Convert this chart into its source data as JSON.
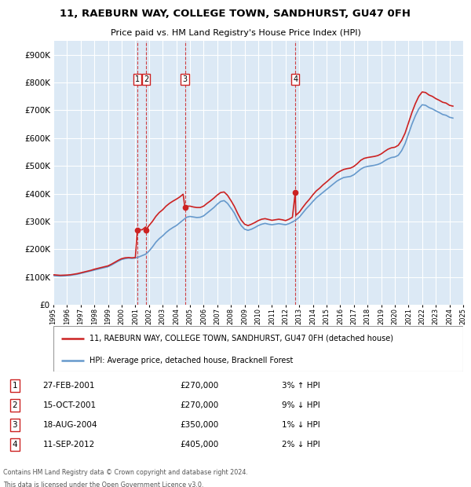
{
  "title1": "11, RAEBURN WAY, COLLEGE TOWN, SANDHURST, GU47 0FH",
  "title2": "Price paid vs. HM Land Registry's House Price Index (HPI)",
  "ylim": [
    0,
    950000
  ],
  "yticks": [
    0,
    100000,
    200000,
    300000,
    400000,
    500000,
    600000,
    700000,
    800000,
    900000
  ],
  "ytick_labels": [
    "£0",
    "£100K",
    "£200K",
    "£300K",
    "£400K",
    "£500K",
    "£600K",
    "£700K",
    "£800K",
    "£900K"
  ],
  "bg_color": "#dce9f5",
  "grid_color": "white",
  "hpi_color": "#6699cc",
  "price_color": "#cc2222",
  "transactions": [
    {
      "date_x": 2001.15,
      "price": 270000,
      "label": "1"
    },
    {
      "date_x": 2001.79,
      "price": 270000,
      "label": "2"
    },
    {
      "date_x": 2004.63,
      "price": 350000,
      "label": "3"
    },
    {
      "date_x": 2012.71,
      "price": 405000,
      "label": "4"
    }
  ],
  "hpi_data_x": [
    1995.0,
    1995.25,
    1995.5,
    1995.75,
    1996.0,
    1996.25,
    1996.5,
    1996.75,
    1997.0,
    1997.25,
    1997.5,
    1997.75,
    1998.0,
    1998.25,
    1998.5,
    1998.75,
    1999.0,
    1999.25,
    1999.5,
    1999.75,
    2000.0,
    2000.25,
    2000.5,
    2000.75,
    2001.0,
    2001.25,
    2001.5,
    2001.75,
    2002.0,
    2002.25,
    2002.5,
    2002.75,
    2003.0,
    2003.25,
    2003.5,
    2003.75,
    2004.0,
    2004.25,
    2004.5,
    2004.75,
    2005.0,
    2005.25,
    2005.5,
    2005.75,
    2006.0,
    2006.25,
    2006.5,
    2006.75,
    2007.0,
    2007.25,
    2007.5,
    2007.75,
    2008.0,
    2008.25,
    2008.5,
    2008.75,
    2009.0,
    2009.25,
    2009.5,
    2009.75,
    2010.0,
    2010.25,
    2010.5,
    2010.75,
    2011.0,
    2011.25,
    2011.5,
    2011.75,
    2012.0,
    2012.25,
    2012.5,
    2012.75,
    2013.0,
    2013.25,
    2013.5,
    2013.75,
    2014.0,
    2014.25,
    2014.5,
    2014.75,
    2015.0,
    2015.25,
    2015.5,
    2015.75,
    2016.0,
    2016.25,
    2016.5,
    2016.75,
    2017.0,
    2017.25,
    2017.5,
    2017.75,
    2018.0,
    2018.25,
    2018.5,
    2018.75,
    2019.0,
    2019.25,
    2019.5,
    2019.75,
    2020.0,
    2020.25,
    2020.5,
    2020.75,
    2021.0,
    2021.25,
    2021.5,
    2021.75,
    2022.0,
    2022.25,
    2022.5,
    2022.75,
    2023.0,
    2023.25,
    2023.5,
    2023.75,
    2024.0,
    2024.25
  ],
  "hpi_data_y": [
    105000,
    104000,
    103500,
    104000,
    105000,
    106000,
    108000,
    110000,
    113000,
    116000,
    119000,
    122000,
    125000,
    128000,
    131000,
    134000,
    137000,
    143000,
    150000,
    157000,
    163000,
    166000,
    168000,
    167000,
    168000,
    172000,
    177000,
    182000,
    193000,
    208000,
    225000,
    238000,
    248000,
    260000,
    270000,
    278000,
    285000,
    295000,
    305000,
    315000,
    318000,
    316000,
    314000,
    315000,
    320000,
    330000,
    340000,
    350000,
    362000,
    372000,
    375000,
    365000,
    348000,
    330000,
    305000,
    285000,
    272000,
    268000,
    272000,
    278000,
    285000,
    290000,
    293000,
    290000,
    288000,
    290000,
    292000,
    290000,
    288000,
    292000,
    298000,
    305000,
    315000,
    330000,
    345000,
    358000,
    372000,
    385000,
    395000,
    405000,
    415000,
    425000,
    435000,
    445000,
    452000,
    458000,
    460000,
    462000,
    468000,
    478000,
    488000,
    495000,
    498000,
    500000,
    502000,
    505000,
    510000,
    518000,
    525000,
    530000,
    532000,
    538000,
    555000,
    580000,
    615000,
    650000,
    680000,
    705000,
    720000,
    718000,
    710000,
    705000,
    698000,
    692000,
    685000,
    682000,
    675000,
    672000
  ],
  "price_data_x": [
    1995.0,
    1995.25,
    1995.5,
    1995.75,
    1996.0,
    1996.25,
    1996.5,
    1996.75,
    1997.0,
    1997.25,
    1997.5,
    1997.75,
    1998.0,
    1998.25,
    1998.5,
    1998.75,
    1999.0,
    1999.25,
    1999.5,
    1999.75,
    2000.0,
    2000.25,
    2000.5,
    2000.75,
    2001.0,
    2001.15,
    2001.5,
    2001.75,
    2001.79,
    2002.0,
    2002.25,
    2002.5,
    2002.75,
    2003.0,
    2003.25,
    2003.5,
    2003.75,
    2004.0,
    2004.25,
    2004.5,
    2004.63,
    2004.75,
    2005.0,
    2005.25,
    2005.5,
    2005.75,
    2006.0,
    2006.25,
    2006.5,
    2006.75,
    2007.0,
    2007.25,
    2007.5,
    2007.75,
    2008.0,
    2008.25,
    2008.5,
    2008.75,
    2009.0,
    2009.25,
    2009.5,
    2009.75,
    2010.0,
    2010.25,
    2010.5,
    2010.75,
    2011.0,
    2011.25,
    2011.5,
    2011.75,
    2012.0,
    2012.25,
    2012.5,
    2012.71,
    2012.75,
    2013.0,
    2013.25,
    2013.5,
    2013.75,
    2014.0,
    2014.25,
    2014.5,
    2014.75,
    2015.0,
    2015.25,
    2015.5,
    2015.75,
    2016.0,
    2016.25,
    2016.5,
    2016.75,
    2017.0,
    2017.25,
    2017.5,
    2017.75,
    2018.0,
    2018.25,
    2018.5,
    2018.75,
    2019.0,
    2019.25,
    2019.5,
    2019.75,
    2020.0,
    2020.25,
    2020.5,
    2020.75,
    2021.0,
    2021.25,
    2021.5,
    2021.75,
    2022.0,
    2022.25,
    2022.5,
    2022.75,
    2023.0,
    2023.25,
    2023.5,
    2023.75,
    2024.0,
    2024.25
  ],
  "price_data_y": [
    108000,
    107000,
    106000,
    106500,
    107000,
    108000,
    110000,
    112000,
    115000,
    118000,
    121000,
    124000,
    128000,
    131000,
    134000,
    137000,
    140000,
    146000,
    153000,
    160000,
    166000,
    169000,
    170000,
    169000,
    170000,
    270000,
    270000,
    280000,
    270000,
    285000,
    300000,
    318000,
    332000,
    342000,
    355000,
    365000,
    373000,
    380000,
    388000,
    398000,
    350000,
    355000,
    355000,
    352000,
    350000,
    350000,
    355000,
    365000,
    374000,
    384000,
    395000,
    404000,
    406000,
    394000,
    375000,
    354000,
    328000,
    305000,
    290000,
    285000,
    290000,
    296000,
    303000,
    308000,
    310000,
    307000,
    304000,
    306000,
    308000,
    306000,
    303000,
    308000,
    315000,
    405000,
    322000,
    333000,
    350000,
    366000,
    380000,
    396000,
    410000,
    420000,
    432000,
    442000,
    453000,
    463000,
    474000,
    481000,
    487000,
    490000,
    492000,
    498000,
    508000,
    520000,
    527000,
    530000,
    532000,
    534000,
    537000,
    543000,
    552000,
    560000,
    565000,
    567000,
    574000,
    592000,
    618000,
    655000,
    692000,
    724000,
    750000,
    766000,
    764000,
    755000,
    750000,
    742000,
    736000,
    729000,
    726000,
    718000,
    715000
  ],
  "legend_line1": "11, RAEBURN WAY, COLLEGE TOWN, SANDHURST, GU47 0FH (detached house)",
  "legend_line2": "HPI: Average price, detached house, Bracknell Forest",
  "table_rows": [
    {
      "num": "1",
      "date": "27-FEB-2001",
      "price": "£270,000",
      "hpi": "3% ↑ HPI"
    },
    {
      "num": "2",
      "date": "15-OCT-2001",
      "price": "£270,000",
      "hpi": "9% ↓ HPI"
    },
    {
      "num": "3",
      "date": "18-AUG-2004",
      "price": "£350,000",
      "hpi": "1% ↓ HPI"
    },
    {
      "num": "4",
      "date": "11-SEP-2012",
      "price": "£405,000",
      "hpi": "2% ↓ HPI"
    }
  ],
  "footnote1": "Contains HM Land Registry data © Crown copyright and database right 2024.",
  "footnote2": "This data is licensed under the Open Government Licence v3.0.",
  "xmin": 1995,
  "xmax": 2025,
  "xticks": [
    1995,
    1996,
    1997,
    1998,
    1999,
    2000,
    2001,
    2002,
    2003,
    2004,
    2005,
    2006,
    2007,
    2008,
    2009,
    2010,
    2011,
    2012,
    2013,
    2014,
    2015,
    2016,
    2017,
    2018,
    2019,
    2020,
    2021,
    2022,
    2023,
    2024,
    2025
  ]
}
